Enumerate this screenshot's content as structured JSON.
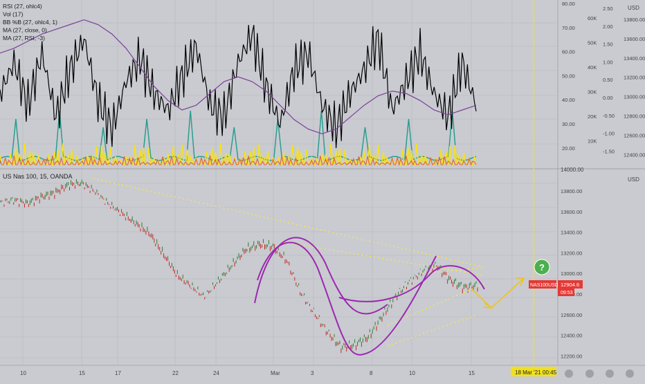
{
  "colors": {
    "background": "#c9cbd0",
    "rsi": "#000000",
    "volume": "#f5e11c",
    "bbpb": "#2a9d8f",
    "ma_close": "#e0613a",
    "ma_rsi": "#7b3f98",
    "candle_up": "#2e7d32",
    "candle_down": "#c62828",
    "trend_dotted": "#f7e35b",
    "arc": "#9c27b0",
    "cursor": "#f0e020",
    "price_badge": "#e53935",
    "question_badge": "#4caf50",
    "grid": "#b5b7bc",
    "axis_text": "#444444"
  },
  "upper_pane": {
    "legend": [
      {
        "label": "RSI (27, ohlc4)",
        "color": "#000000"
      },
      {
        "label": "Vol (17)",
        "color": "#f5e11c"
      },
      {
        "label": "BB %B (27, ohlc4, 1)",
        "color": "#2a9d8f"
      },
      {
        "label": "MA (27, close, 0)",
        "color": "#e0613a"
      },
      {
        "label": "MA (27, RSI, -3)",
        "color": "#7b3f98"
      }
    ],
    "axis_rsi": [
      "80.00",
      "70.00",
      "60.00",
      "50.00",
      "40.00",
      "30.00",
      "20.00"
    ],
    "axis_vol": [
      "60K",
      "50K",
      "40K",
      "30K",
      "20K",
      "10K"
    ],
    "axis_bbpb": [
      "2.50",
      "2.00",
      "1.50",
      "1.00",
      "0.50",
      "0.00",
      "-0.50",
      "-1.00",
      "-1.50"
    ],
    "axis_price": [
      "13800.00",
      "13600.00",
      "13400.00",
      "13200.00",
      "13000.00",
      "12800.00",
      "12600.00",
      "12400.00"
    ],
    "usd_label": "USD",
    "divider_label": "14000.00"
  },
  "main_pane": {
    "title": "US Nas 100, 15, OANDA",
    "axis_price": [
      "13800.00",
      "13600.00",
      "13400.00",
      "13200.00",
      "13000.00",
      "12800.00",
      "12600.00",
      "12400.00",
      "12200.00"
    ],
    "usd_label": "USD",
    "symbol_badge": "NAS100USD",
    "price_badge": "12904.6",
    "time_badge": "09:53",
    "question_mark": "?"
  },
  "time_axis": {
    "labels": [
      "10",
      "15",
      "17",
      "22",
      "24",
      "Mar",
      "3",
      "8",
      "10",
      "15",
      "18"
    ],
    "cursor_label": "18 Mar '21",
    "cursor_time": "00:45"
  },
  "chart_data": [
    {
      "type": "line",
      "title": "",
      "series": [
        {
          "name": "RSI (27, ohlc4)",
          "values": [
            45,
            58,
            40,
            62,
            35,
            55,
            68,
            42,
            30,
            50,
            60,
            45,
            38,
            52,
            65,
            40,
            35,
            58,
            70,
            48,
            32,
            55,
            62,
            40,
            30,
            45,
            55,
            68,
            38,
            50,
            62,
            45,
            35,
            58,
            40
          ]
        },
        {
          "name": "MA (27, RSI, -3)",
          "values": [
            62,
            64,
            67,
            70,
            72,
            74,
            76,
            74,
            70,
            64,
            56,
            48,
            42,
            38,
            40,
            45,
            50,
            52,
            50,
            46,
            40,
            34,
            30,
            28,
            30,
            35,
            40,
            44,
            46,
            45,
            42,
            38,
            36,
            38,
            40
          ]
        }
      ],
      "ylim": [
        15,
        82
      ]
    },
    {
      "type": "line",
      "title": "",
      "series": [
        {
          "name": "Vol (17)",
          "values": [
            44,
            62,
            48,
            70,
            56,
            46,
            66,
            54,
            40,
            60,
            68,
            50,
            44,
            62,
            48,
            58,
            52,
            64,
            70,
            42,
            38,
            56,
            66,
            48,
            42,
            60,
            54,
            72,
            50,
            58,
            66,
            44,
            40,
            62,
            52
          ]
        }
      ],
      "ylim": [
        0,
        70000
      ]
    },
    {
      "type": "line",
      "title": "US Nas 100, 15, OANDA",
      "x_labels": [
        "10",
        "15",
        "17",
        "22",
        "24",
        "Mar",
        "3",
        "8",
        "10",
        "15"
      ],
      "series": [
        {
          "name": "US Nas 100, 15, OANDA",
          "values": [
            13720,
            13740,
            13700,
            13760,
            13800,
            13880,
            13900,
            13820,
            13700,
            13600,
            13500,
            13400,
            13200,
            13000,
            12900,
            12800,
            12950,
            13100,
            13250,
            13300,
            13280,
            13150,
            12850,
            12650,
            12450,
            12300,
            12320,
            12400,
            12600,
            12800,
            12950,
            13050,
            13100,
            12950,
            12880,
            12900
          ]
        }
      ],
      "ylim": [
        12200,
        14000
      ]
    }
  ]
}
